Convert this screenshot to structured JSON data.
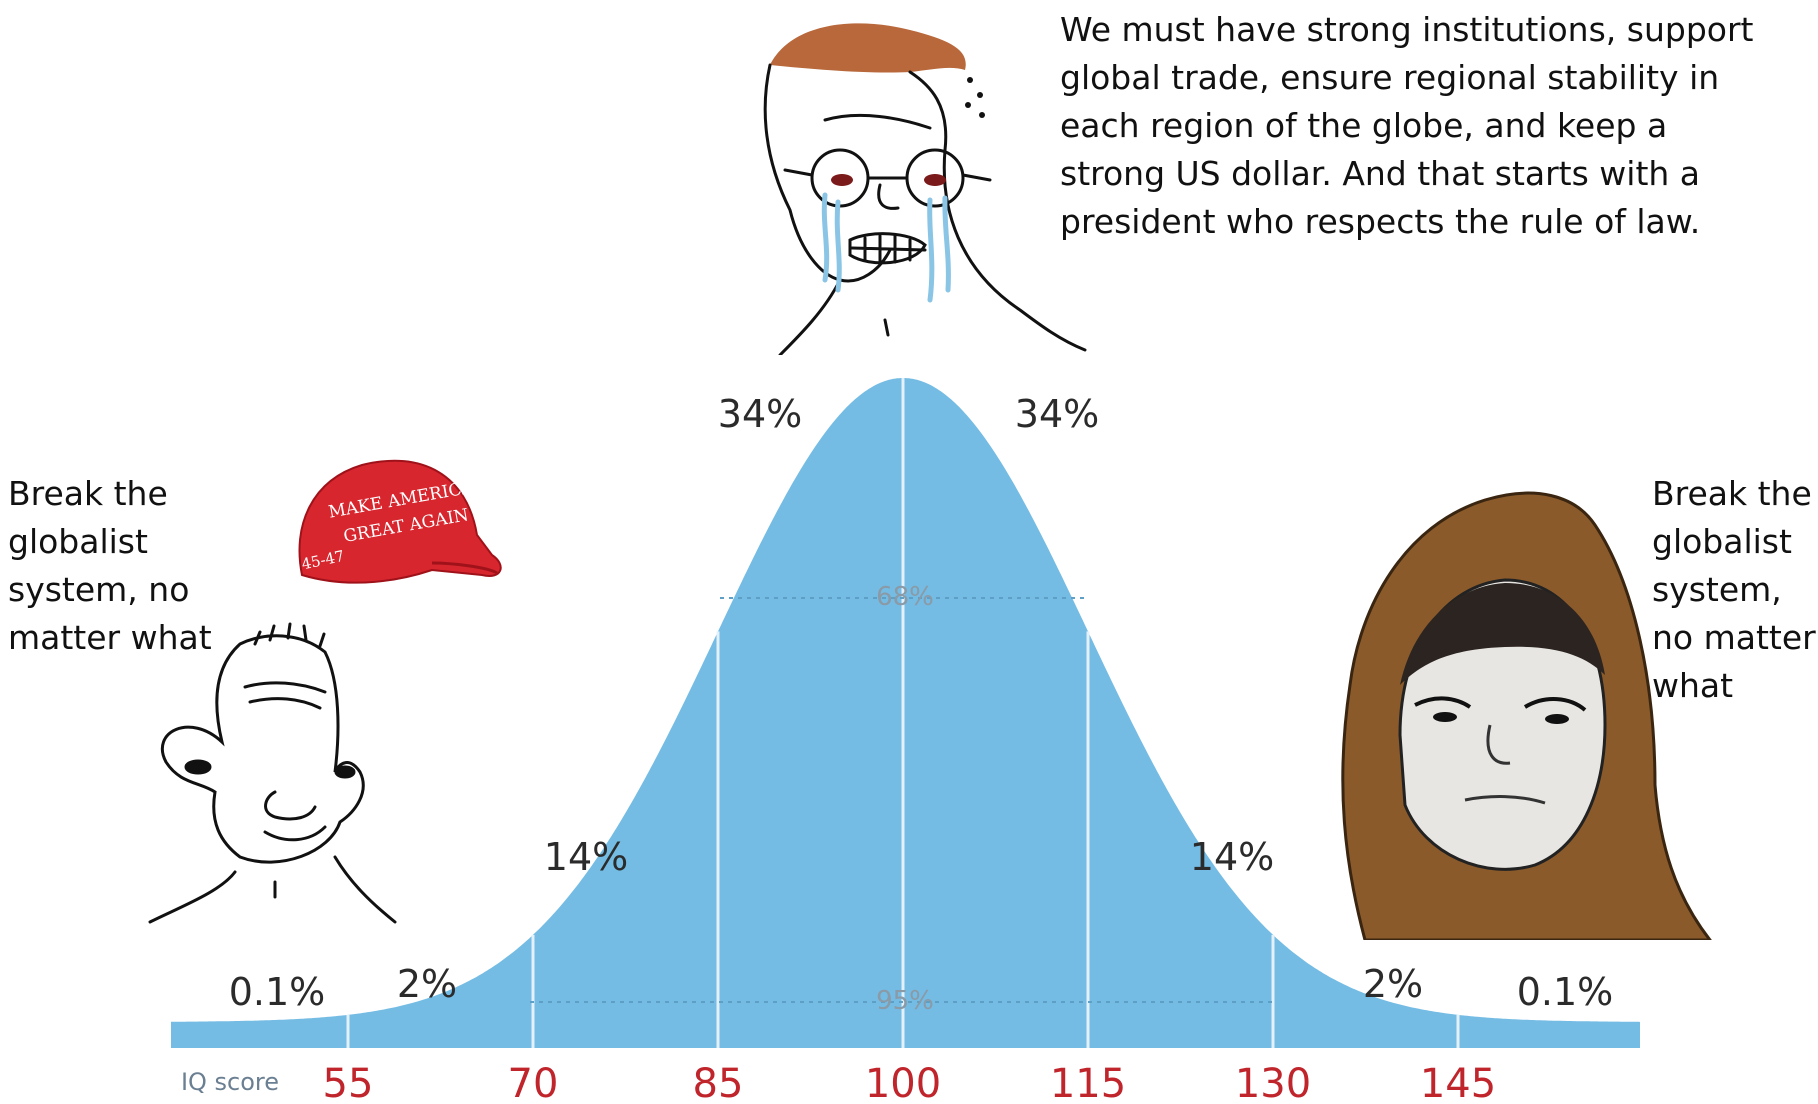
{
  "top_speech": [
    "We must have strong institutions, support",
    "global trade, ensure regional stability in",
    "each region of the globe, and keep a",
    "strong US dollar. And that starts with a",
    "president who respects the rule of law."
  ],
  "left_speech": [
    "Break the",
    "globalist",
    "system, no",
    "matter what"
  ],
  "right_speech": [
    "Break the",
    "globalist",
    "system,",
    "no matter",
    "what"
  ],
  "hat": {
    "line1": "MAKE AMERICA",
    "line2": "GREAT AGAIN",
    "side": "45-47"
  },
  "chart_data": {
    "type": "area",
    "axis_name": "IQ score",
    "ticks": [
      "55",
      "70",
      "85",
      "100",
      "115",
      "130",
      "145"
    ],
    "band_labels": {
      "far_left": "0.1%",
      "left_tail": "2%",
      "left_mid": "14%",
      "left_center": "34%",
      "right_center": "34%",
      "right_mid": "14%",
      "right_tail": "2%",
      "far_right": "0.1%"
    },
    "inner_labels": {
      "one_sd": "68%",
      "two_sd": "95%"
    },
    "mean": 100,
    "sd": 15,
    "colors": {
      "fill": "#74bce4",
      "divider": "#e4f1fa",
      "tick": "#c0252c"
    }
  }
}
